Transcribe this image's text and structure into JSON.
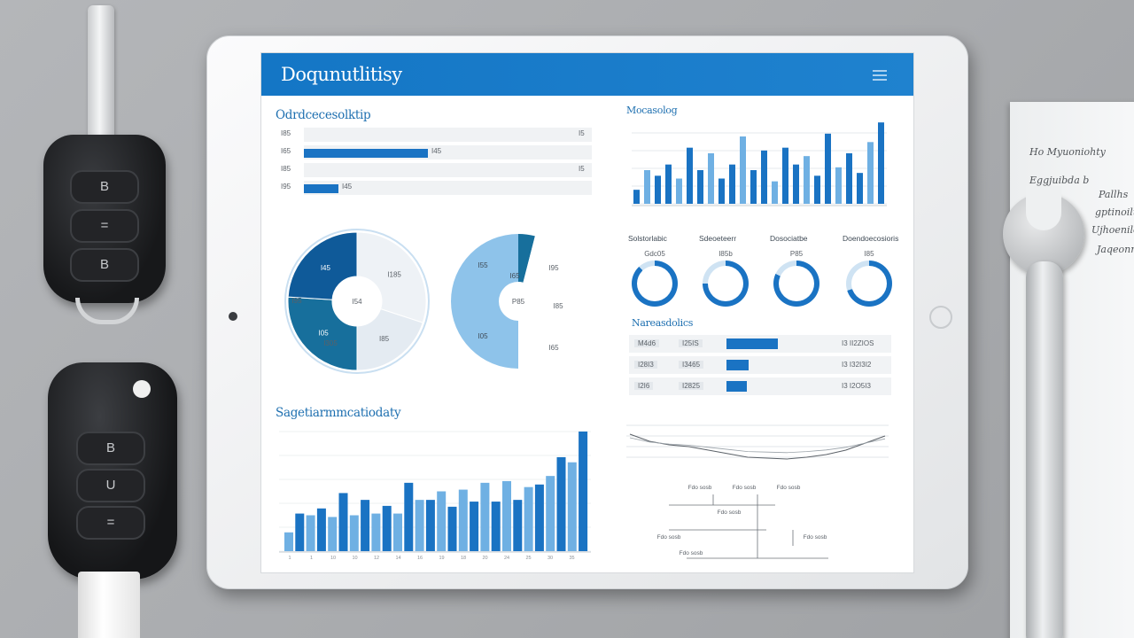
{
  "dashboard": {
    "title": "Doqunutlitisy",
    "overview": {
      "title": "Odrdcecesolktip",
      "rows": [
        {
          "label": "I85",
          "fill": 0,
          "value": "I5"
        },
        {
          "label": "I65",
          "fill": 0.43,
          "value": "I45"
        },
        {
          "label": "I85",
          "fill": 0,
          "value": "I5"
        },
        {
          "label": "I95",
          "fill": 0.12,
          "value": "I45"
        }
      ]
    },
    "donut_chart": {
      "segments": [
        {
          "label": "I185",
          "value": 30
        },
        {
          "label": "I85",
          "value": 20
        },
        {
          "label": "I05",
          "value": 26
        },
        {
          "label": "I45",
          "value": 24
        }
      ],
      "center_label": "I54",
      "side_label": "I95",
      "bottom_label": "I305"
    },
    "pie_chart": {
      "labels": [
        "I55",
        "I95",
        "I85",
        "I65",
        "I05",
        "I65"
      ],
      "center_label": "P85"
    },
    "bar_top": {
      "title": "Mocasolog",
      "values": [
        5,
        12,
        10,
        14,
        9,
        20,
        12,
        18,
        9,
        14,
        24,
        12,
        19,
        8,
        20,
        14,
        17,
        10,
        25,
        13,
        18,
        11,
        22,
        29
      ]
    },
    "progress": {
      "titles": [
        "Solstorlabic",
        "Sdeoeteerr",
        "Dosociatbe",
        "Doendoecosioris"
      ],
      "items": [
        {
          "label": "Gdc05",
          "value": 0.88
        },
        {
          "label": "I85b",
          "value": 0.75
        },
        {
          "label": "P85",
          "value": 0.82
        },
        {
          "label": "I85",
          "value": 0.7
        }
      ]
    },
    "table": {
      "title": "Nareasdolics",
      "rows": [
        {
          "c1": "M4d6",
          "c2": "I25IS",
          "fill": 0.5,
          "c4": "I3 II2ZIOS"
        },
        {
          "c1": "I28I3",
          "c2": "I3465",
          "fill": 0.22,
          "c4": "I3 I32I3I2"
        },
        {
          "c1": "I2I6",
          "c2": "I2825",
          "fill": 0.2,
          "c4": "I3 I2O5I3"
        }
      ]
    },
    "bar_bottom": {
      "title": "Sagetiarmmcatiodaty",
      "values": [
        22,
        44,
        42,
        50,
        40,
        68,
        42,
        60,
        44,
        53,
        44,
        80,
        60,
        60,
        70,
        52,
        72,
        58,
        80,
        58,
        82,
        60,
        75,
        78,
        88,
        110,
        104,
        140
      ],
      "axis_labels": [
        "1",
        "1",
        "10",
        "10",
        "12",
        "14",
        "16",
        "19",
        "18",
        "20",
        "24",
        "25",
        "30",
        "35"
      ]
    },
    "line_chart": {
      "values": [
        30,
        22,
        18,
        16,
        12,
        8,
        4,
        3,
        2,
        4,
        7,
        12,
        20,
        28
      ]
    },
    "tree": {
      "labels": [
        "Fdo sosb",
        "Fdo sosb",
        "Fdo sosb",
        "Fdo sosb",
        "Fdo sosb",
        "Fdo sosb",
        "Fdo sosb"
      ]
    }
  },
  "paper": {
    "lines": [
      "Ho Myuoniohty",
      "Eggjuibda b",
      "Pallhs",
      "gptinoilu",
      "Ujhoenilo",
      "Jaqeonnldu"
    ]
  },
  "keys": {
    "remote1": [
      "B",
      "=",
      "B"
    ],
    "remote2": [
      "B",
      "U",
      "="
    ]
  },
  "colors": {
    "accent": "#1a73c3",
    "accent_dark": "#0f5a99",
    "light_blue": "#6fb0e3",
    "pale_blue": "#a9d0ef",
    "teal": "#176f9c",
    "header": "#1476c5"
  }
}
